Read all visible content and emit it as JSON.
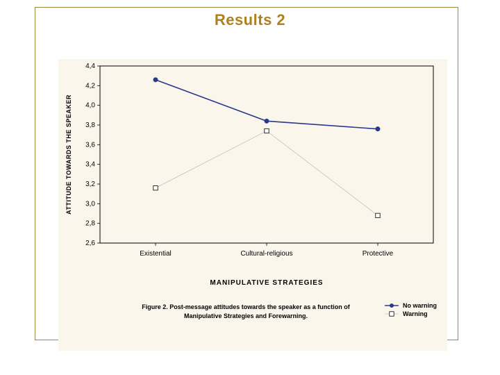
{
  "slide_title": "Results 2",
  "chart": {
    "type": "line",
    "background_color": "#faf6ec",
    "plot_border_color": "#000000",
    "ylabel": "ATTITUDE TOWARDS THE SPEAKER",
    "xlabel": "MANIPULATIVE STRATEGIES",
    "caption_line1": "Figure 2. Post-message attitudes towards the speaker as a function of",
    "caption_line2": "Manipulative Strategies and Forewarning.",
    "ylim": [
      2.6,
      4.4
    ],
    "ytick_step": 0.2,
    "ytick_labels": [
      "2,6",
      "2,8",
      "3,0",
      "3,2",
      "3,4",
      "3,6",
      "3,8",
      "4,0",
      "4,2",
      "4,4"
    ],
    "categories": [
      "Existential",
      "Cultural-religious",
      "Protective"
    ],
    "series": [
      {
        "name": "No warning",
        "values": [
          4.26,
          3.84,
          3.76
        ],
        "color": "#2a3a8a",
        "line_width": 1.6,
        "marker": "filled-circle",
        "marker_size": 3
      },
      {
        "name": "Warning",
        "values": [
          3.16,
          3.74,
          2.88
        ],
        "color": "#b0b0b0",
        "line_width": 0.6,
        "marker": "open-square",
        "marker_size": 3.2
      }
    ],
    "axis_fontsize": 10,
    "label_fontsize": 9,
    "legend_fontsize": 9
  }
}
